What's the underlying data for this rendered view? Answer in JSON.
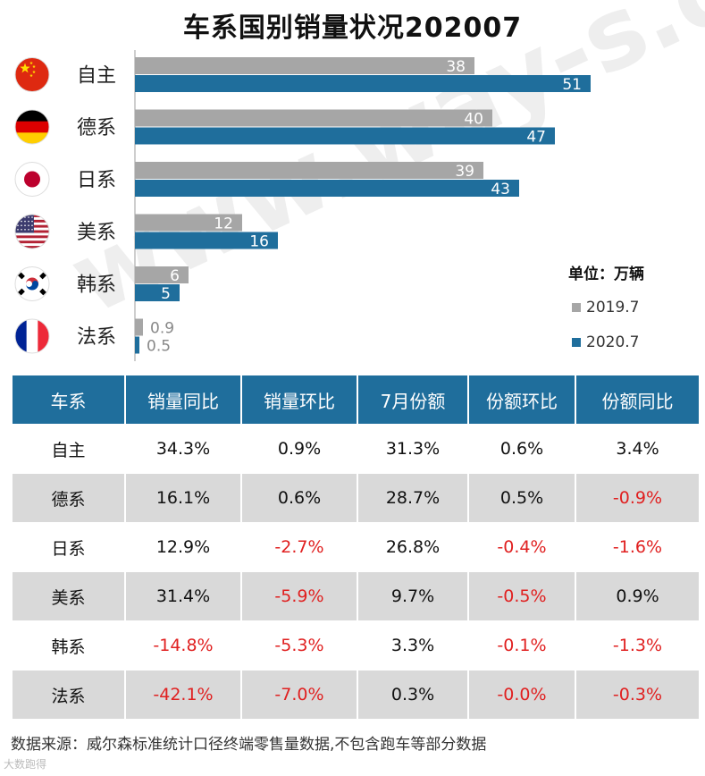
{
  "title": "车系国别销量状况202007",
  "unit_label": "单位：万辆",
  "watermark": "www.way-s.cn",
  "brand": "大数跑得",
  "source": "数据来源：威尔森标准统计口径终端零售量数据,不包含跑车等部分数据",
  "colors": {
    "series_2019": "#a6a6a6",
    "series_2020": "#1f6e9c",
    "negative": "#e02020",
    "header_bg": "#1f6e9c"
  },
  "chart_data": {
    "type": "bar",
    "orientation": "horizontal",
    "title": "车系国别销量状况202007",
    "categories": [
      "自主",
      "德系",
      "日系",
      "美系",
      "韩系",
      "法系"
    ],
    "flags": [
      "china-flag-icon",
      "germany-flag-icon",
      "japan-flag-icon",
      "usa-flag-icon",
      "korea-flag-icon",
      "france-flag-icon"
    ],
    "series": [
      {
        "name": "2019.7",
        "values": [
          38,
          40,
          39,
          12,
          6,
          0.9
        ],
        "labels": [
          "38",
          "40",
          "39",
          "12",
          "6",
          "0.9"
        ]
      },
      {
        "name": "2020.7",
        "values": [
          51,
          47,
          43,
          16,
          5,
          0.5
        ],
        "labels": [
          "51",
          "47",
          "43",
          "16",
          "5",
          "0.5"
        ]
      }
    ],
    "xlim": [
      0,
      55
    ],
    "legend_position": "right"
  },
  "table": {
    "headers": [
      "车系",
      "销量同比",
      "销量环比",
      "7月份额",
      "份额环比",
      "份额同比"
    ],
    "rows": [
      [
        "自主",
        "34.3%",
        "0.9%",
        "31.3%",
        "0.6%",
        "3.4%"
      ],
      [
        "德系",
        "16.1%",
        "0.6%",
        "28.7%",
        "0.5%",
        "-0.9%"
      ],
      [
        "日系",
        "12.9%",
        "-2.7%",
        "26.8%",
        "-0.4%",
        "-1.6%"
      ],
      [
        "美系",
        "31.4%",
        "-5.9%",
        "9.7%",
        "-0.5%",
        "0.9%"
      ],
      [
        "韩系",
        "-14.8%",
        "-5.3%",
        "3.3%",
        "-0.1%",
        "-1.3%"
      ],
      [
        "法系",
        "-42.1%",
        "-7.0%",
        "0.3%",
        "-0.0%",
        "-0.3%"
      ]
    ]
  }
}
